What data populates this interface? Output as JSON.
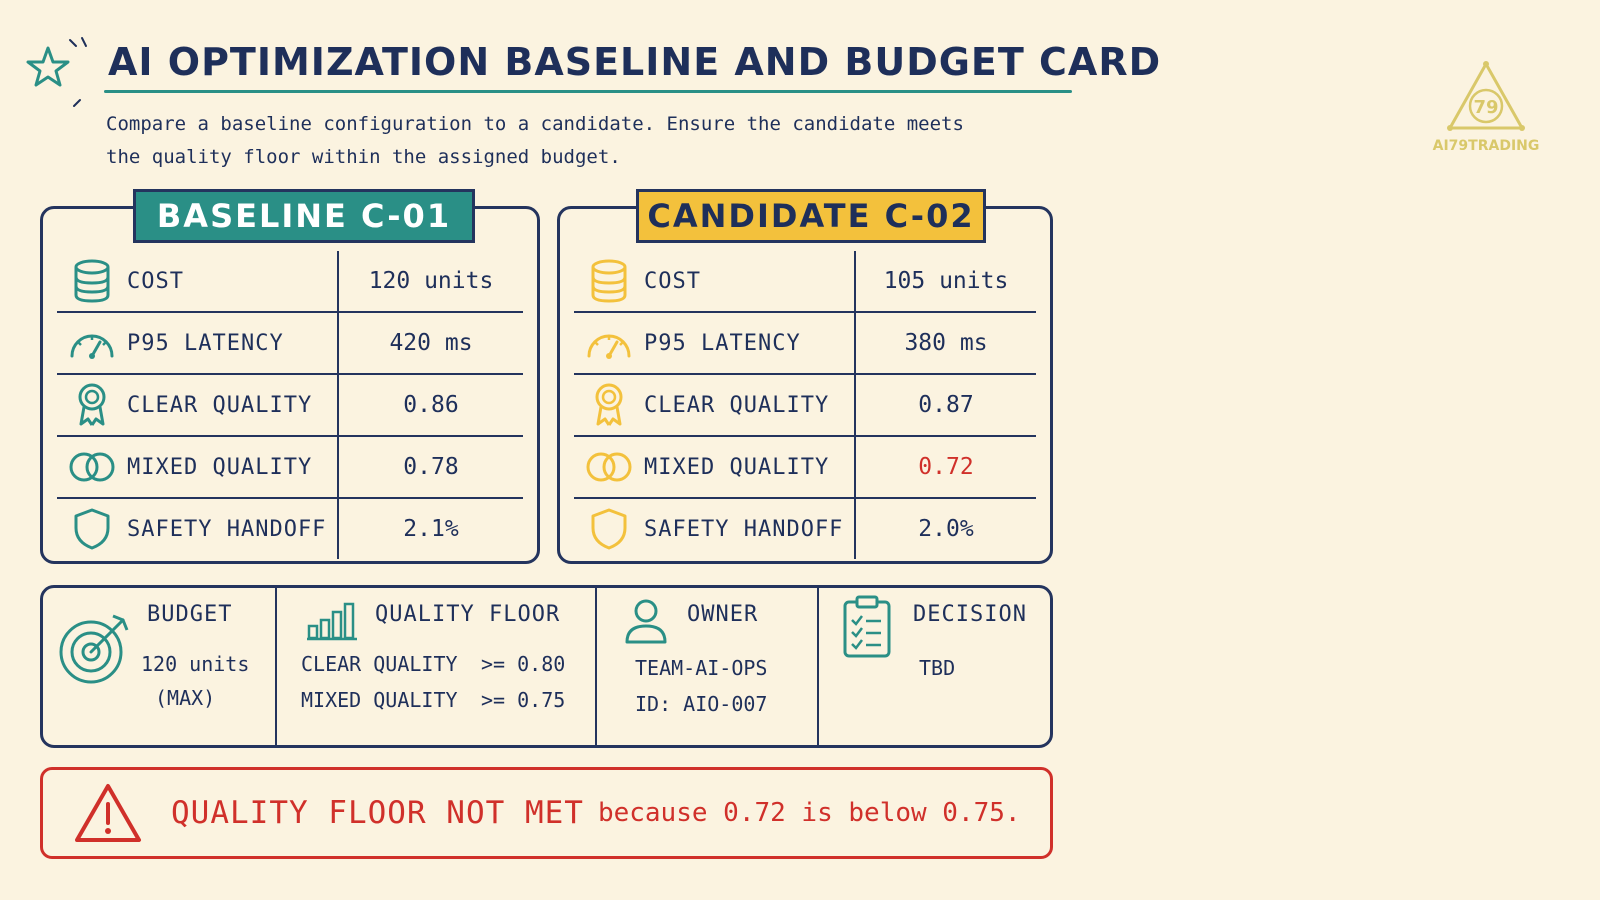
{
  "header": {
    "title": "AI OPTIMIZATION BASELINE AND BUDGET CARD",
    "subtitle_line1": "Compare a baseline configuration to a candidate. Ensure the candidate meets",
    "subtitle_line2": "the quality floor within the assigned budget."
  },
  "logo": {
    "text": "AI79TRADING",
    "mark": "79"
  },
  "baseline": {
    "tag": "BASELINE C-01",
    "rows": [
      {
        "icon": "database-icon",
        "label": "COST",
        "value": "120 units"
      },
      {
        "icon": "gauge-icon",
        "label": "P95 LATENCY",
        "value": "420 ms"
      },
      {
        "icon": "ribbon-icon",
        "label": "CLEAR QUALITY",
        "value": "0.86"
      },
      {
        "icon": "rings-icon",
        "label": "MIXED QUALITY",
        "value": "0.78"
      },
      {
        "icon": "shield-icon",
        "label": "SAFETY HANDOFF",
        "value": "2.1%"
      }
    ]
  },
  "candidate": {
    "tag": "CANDIDATE C-02",
    "rows": [
      {
        "icon": "database-icon",
        "label": "COST",
        "value": "105 units"
      },
      {
        "icon": "gauge-icon",
        "label": "P95 LATENCY",
        "value": "380 ms"
      },
      {
        "icon": "ribbon-icon",
        "label": "CLEAR QUALITY",
        "value": "0.87"
      },
      {
        "icon": "rings-icon",
        "label": "MIXED QUALITY",
        "value": "0.72"
      },
      {
        "icon": "shield-icon",
        "label": "SAFETY HANDOFF",
        "value": "2.0%"
      }
    ]
  },
  "summary": {
    "budget": {
      "label": "BUDGET",
      "value": "120 units",
      "note": "(MAX)"
    },
    "quality_floor": {
      "label": "QUALITY FLOOR",
      "line1_name": "CLEAR QUALITY",
      "line1_value": ">= 0.80",
      "line2_name": "MIXED QUALITY",
      "line2_value": ">= 0.75"
    },
    "owner": {
      "label": "OWNER",
      "team": "TEAM-AI-OPS",
      "id": "ID: AIO-007"
    },
    "decision": {
      "label": "DECISION",
      "value": "TBD"
    }
  },
  "alert": {
    "headline": "QUALITY FLOOR NOT MET",
    "detail": "because 0.72 is below 0.75."
  },
  "colors": {
    "teal": "#2a8f86",
    "amber": "#f3c13c",
    "navy": "#24345e",
    "red": "#d0302a",
    "background": "#fbf3e0"
  }
}
